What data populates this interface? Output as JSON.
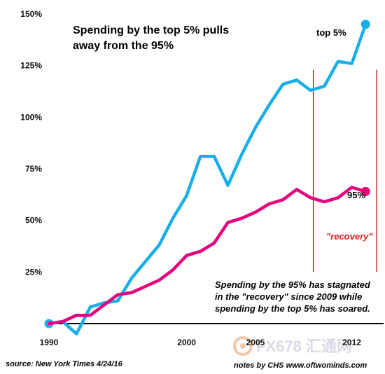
{
  "chart_data": {
    "type": "line",
    "title_lines": [
      "Spending by the top 5% pulls",
      "away from the 95%"
    ],
    "x": [
      1990,
      1991,
      1992,
      1993,
      1994,
      1995,
      1996,
      1997,
      1998,
      1999,
      2000,
      2001,
      2002,
      2003,
      2004,
      2005,
      2006,
      2007,
      2008,
      2009,
      2010,
      2011,
      2012,
      2013
    ],
    "xticks": [
      1990,
      2000,
      2005,
      2012
    ],
    "xtick_labels": [
      "1990",
      "2000",
      "2005",
      "2012"
    ],
    "xlim": [
      1989.9,
      2013.8
    ],
    "yticks": [
      25,
      50,
      75,
      100,
      125,
      150
    ],
    "ytick_labels": [
      "25%",
      "50%",
      "75%",
      "100%",
      "125%",
      "150%"
    ],
    "ylim": [
      0,
      150
    ],
    "series": [
      {
        "name": "top 5%",
        "color": "#1aaee8",
        "values": [
          0,
          1,
          -5,
          8,
          10,
          11,
          22,
          30,
          38,
          51,
          62,
          81,
          81,
          67,
          82,
          95,
          106,
          116,
          118,
          113,
          115,
          127,
          126,
          145
        ]
      },
      {
        "name": "95%",
        "color": "#e5007e",
        "values": [
          0,
          1,
          4,
          4,
          9,
          14,
          15,
          18,
          21,
          26,
          33,
          35,
          39,
          49,
          51,
          54,
          58,
          60,
          65,
          61,
          59,
          61,
          66,
          64
        ]
      }
    ],
    "series_labels": [
      "top 5%",
      "95%"
    ],
    "markers": {
      "vertical_lines_x": [
        2009.2,
        2013.8
      ],
      "vertical_line_color": "#c00000"
    },
    "annotations": {
      "recovery": "\"recovery\"",
      "note_lines": [
        "Spending by the 95% has stagnated",
        "in the \"recovery\" since 2009 while",
        "spending by the top 5% has soared."
      ]
    },
    "grid": false,
    "legend": "none"
  },
  "footer": {
    "source": "source: New York Times 4/24/16",
    "notes": "notes by CHS  www.oftwominds.com"
  },
  "watermark": {
    "text": "FX678 汇通网"
  }
}
